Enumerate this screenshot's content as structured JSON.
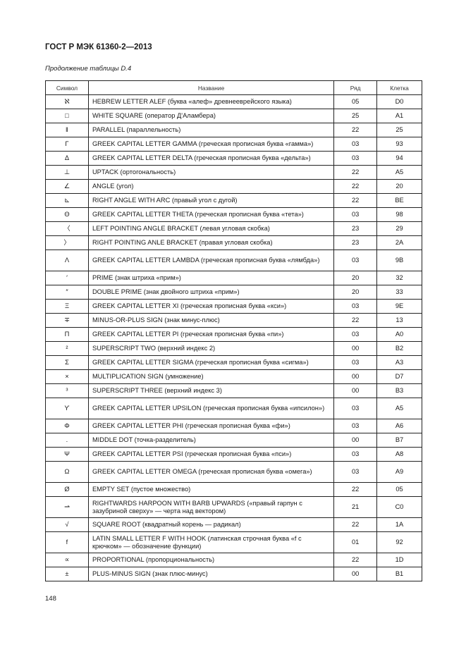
{
  "header": {
    "title": "ГОСТ Р МЭК 61360-2—2013"
  },
  "caption": "Продолжение таблицы D.4",
  "table": {
    "columns": [
      "Символ",
      "Название",
      "Ряд",
      "Клетка"
    ],
    "rows": [
      {
        "symbol": "ℵ",
        "name": "HEBREW LETTER ALEF (буква «алеф» древнееврейского языка)",
        "row": "05",
        "cell": "D0"
      },
      {
        "symbol": "□",
        "name": "WHITE SQUARE (оператор Д'Аламбера)",
        "row": "25",
        "cell": "A1"
      },
      {
        "symbol": "‖",
        "name": "PARALLEL (параллельность)",
        "row": "22",
        "cell": "25"
      },
      {
        "symbol": "Γ",
        "name": "GREEK CAPITAL LETTER GAMMA (греческая прописная буква «гамма»)",
        "row": "03",
        "cell": "93"
      },
      {
        "symbol": "Δ",
        "name": "GREEK CAPITAL LETTER DELTA (греческая прописная буква «дельта»)",
        "row": "03",
        "cell": "94"
      },
      {
        "symbol": "⊥",
        "name": "UPTACK (ортогональность)",
        "row": "22",
        "cell": "A5"
      },
      {
        "symbol": "∠",
        "name": "ANGLE (угол)",
        "row": "22",
        "cell": "20"
      },
      {
        "symbol": "⊾",
        "name": "RIGHT ANGLE WITH ARC (правый угол с дугой)",
        "row": "22",
        "cell": "BE"
      },
      {
        "symbol": "Θ",
        "name": "GREEK CAPITAL LETTER THETA (греческая прописная буква «тета»)",
        "row": "03",
        "cell": "98"
      },
      {
        "symbol": "〈",
        "name": "LEFT POINTING ANGLE BRACKET (левая угловая скобка)",
        "row": "23",
        "cell": "29"
      },
      {
        "symbol": "〉",
        "name": "RIGHT POINTING ANLE BRACKET (правая угловая скобка)",
        "row": "23",
        "cell": "2A"
      },
      {
        "symbol": "Λ",
        "name": "GREEK CAPITAL LETTER LAMBDA (греческая прописная буква «лямбда»)",
        "row": "03",
        "cell": "9B",
        "double": true
      },
      {
        "symbol": "′",
        "name": "PRIME (знак штриха «прим»)",
        "row": "20",
        "cell": "32"
      },
      {
        "symbol": "″",
        "name": "DOUBLE PRIME (знак двойного штриха «прим»)",
        "row": "20",
        "cell": "33"
      },
      {
        "symbol": "Ξ",
        "name": "GREEK CAPITAL LETTER XI (греческая прописная буква «кси»)",
        "row": "03",
        "cell": "9E"
      },
      {
        "symbol": "∓",
        "name": "MINUS-OR-PLUS SIGN (знак минус-плюс)",
        "row": "22",
        "cell": "13"
      },
      {
        "symbol": "Π",
        "name": "GREEK CAPITAL LETTER PI (греческая прописная буква «пи»)",
        "row": "03",
        "cell": "A0"
      },
      {
        "symbol": "²",
        "name": "SUPERSCRIPT TWO (верхний индекс 2)",
        "row": "00",
        "cell": "B2"
      },
      {
        "symbol": "Σ",
        "name": "GREEK CAPITAL LETTER SIGMA (греческая прописная буква «сигма»)",
        "row": "03",
        "cell": "A3"
      },
      {
        "symbol": "×",
        "name": "MULTIPLICATION SIGN (умножение)",
        "row": "00",
        "cell": "D7"
      },
      {
        "symbol": "³",
        "name": "SUPERSCRIPT THREE (верхний индекс 3)",
        "row": "00",
        "cell": "B3"
      },
      {
        "symbol": "ϒ",
        "name": "GREEK CAPITAL LETTER UPSILON (греческая прописная буква «ипсилон»)",
        "row": "03",
        "cell": "A5",
        "double": true
      },
      {
        "symbol": "Φ",
        "name": "GREEK CAPITAL LETTER PHI (греческая прописная буква «фи»)",
        "row": "03",
        "cell": "A6"
      },
      {
        "symbol": ".",
        "name": "MIDDLE DOT (точка-разделитель)",
        "row": "00",
        "cell": "B7"
      },
      {
        "symbol": "Ψ",
        "name": "GREEK CAPITAL LETTER PSI (греческая прописная буква «пси»)",
        "row": "03",
        "cell": "A8"
      },
      {
        "symbol": "Ω",
        "name": "GREEK CAPITAL LETTER OMEGA (греческая прописная буква «омега»)",
        "row": "03",
        "cell": "A9",
        "double": true
      },
      {
        "symbol": "Ø",
        "name": "EMPTY SET (пустое множество)",
        "row": "22",
        "cell": "05"
      },
      {
        "symbol": "⇀",
        "name": "RIGHTWARDS HARPOON WITH BARB UPWARDS («правый гарпун с зазубриной сверху» — черта над вектором)",
        "row": "21",
        "cell": "C0",
        "double": true
      },
      {
        "symbol": "√",
        "name": "SQUARE ROOT (квадратный корень — радикал)",
        "row": "22",
        "cell": "1A"
      },
      {
        "symbol": "f",
        "name": "LATIN SMALL LETTER F WITH HOOK (латинская строчная буква «f с крючком» — обозначение функции)",
        "row": "01",
        "cell": "92",
        "double": true
      },
      {
        "symbol": "∝",
        "name": "PROPORTIONAL (пропорциональность)",
        "row": "22",
        "cell": "1D"
      },
      {
        "symbol": "±",
        "name": "PLUS-MINUS SIGN (знак плюс-минус)",
        "row": "00",
        "cell": "B1"
      }
    ]
  },
  "footer": {
    "page_number": "148"
  }
}
